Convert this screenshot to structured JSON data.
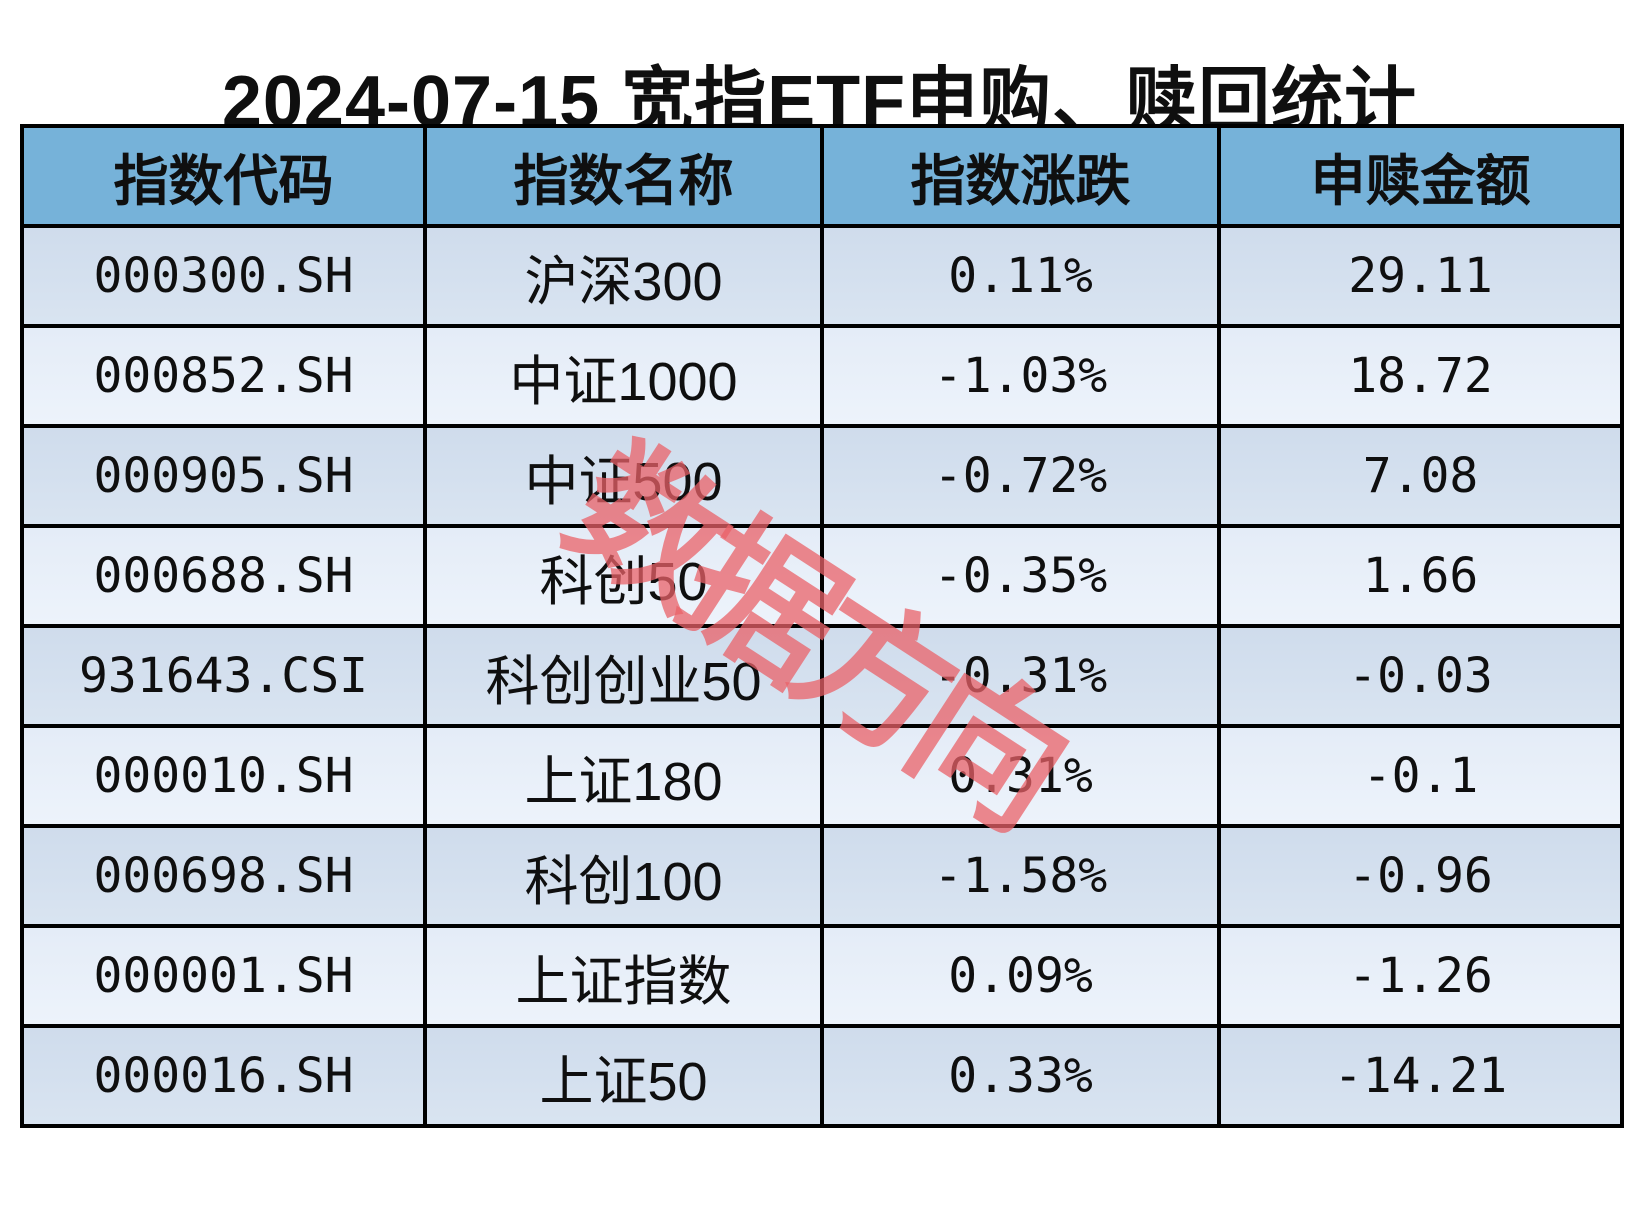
{
  "title": "2024-07-15 宽指ETF申购、赎回统计",
  "watermark": "数据方向",
  "colors": {
    "header_bg": "#76b2d9",
    "row_dark": "#d3dfee",
    "row_light": "#e8eef8",
    "border": "#000000",
    "text": "#0f0f0f",
    "watermark_red": "#e9626a",
    "background": "#ffffff"
  },
  "table": {
    "headers": [
      "指数代码",
      "指数名称",
      "指数涨跌",
      "申赎金额"
    ],
    "rows": [
      {
        "code": "000300.SH",
        "name": "沪深300",
        "change": "0.11%",
        "amount": "29.11"
      },
      {
        "code": "000852.SH",
        "name": "中证1000",
        "change": "-1.03%",
        "amount": "18.72"
      },
      {
        "code": "000905.SH",
        "name": "中证500",
        "change": "-0.72%",
        "amount": "7.08"
      },
      {
        "code": "000688.SH",
        "name": "科创50",
        "change": "-0.35%",
        "amount": "1.66"
      },
      {
        "code": "931643.CSI",
        "name": "科创创业50",
        "change": "-0.31%",
        "amount": "-0.03"
      },
      {
        "code": "000010.SH",
        "name": "上证180",
        "change": "0.31%",
        "amount": "-0.1"
      },
      {
        "code": "000698.SH",
        "name": "科创100",
        "change": "-1.58%",
        "amount": "-0.96"
      },
      {
        "code": "000001.SH",
        "name": "上证指数",
        "change": "0.09%",
        "amount": "-1.26"
      },
      {
        "code": "000016.SH",
        "name": "上证50",
        "change": "0.33%",
        "amount": "-14.21"
      }
    ]
  },
  "chart_data": {
    "type": "table",
    "title": "2024-07-15 宽指ETF申购、赎回统计",
    "columns": [
      "指数代码",
      "指数名称",
      "指数涨跌(%)",
      "申赎金额"
    ],
    "categories": [
      "沪深300",
      "中证1000",
      "中证500",
      "科创50",
      "科创创业50",
      "上证180",
      "科创100",
      "上证指数",
      "上证50"
    ],
    "codes": [
      "000300.SH",
      "000852.SH",
      "000905.SH",
      "000688.SH",
      "931643.CSI",
      "000010.SH",
      "000698.SH",
      "000001.SH",
      "000016.SH"
    ],
    "series": [
      {
        "name": "指数涨跌(%)",
        "values": [
          0.11,
          -1.03,
          -0.72,
          -0.35,
          -0.31,
          0.31,
          -1.58,
          0.09,
          0.33
        ]
      },
      {
        "name": "申赎金额",
        "values": [
          29.11,
          18.72,
          7.08,
          1.66,
          -0.03,
          -0.1,
          -0.96,
          -1.26,
          -14.21
        ]
      }
    ],
    "legend_position": "none",
    "grid": "table-borders"
  }
}
